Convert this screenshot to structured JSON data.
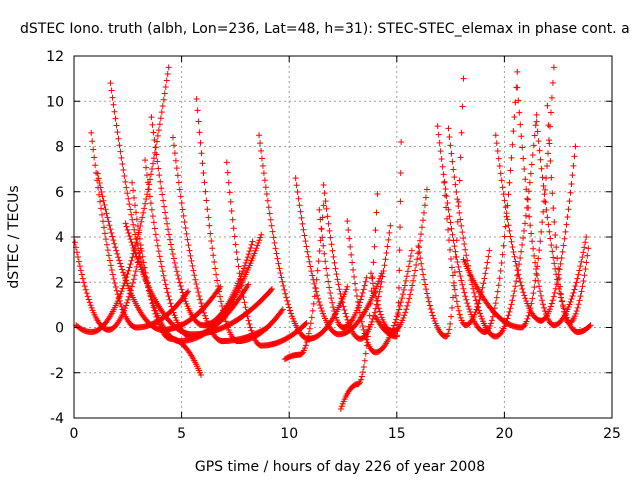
{
  "chart_data": {
    "type": "scatter",
    "title": "dSTEC Iono. truth (albh, Lon=236, Lat=48, h=31): STEC-STEC_elemax in phase cont. a",
    "xlabel": "GPS time / hours of day 226 of year 2008",
    "ylabel": "dSTEC  / TECUs",
    "xlim": [
      0,
      25
    ],
    "ylim": [
      -4,
      12
    ],
    "xticks": [
      0,
      5,
      10,
      15,
      20,
      25
    ],
    "yticks": [
      -4,
      -2,
      0,
      2,
      4,
      6,
      8,
      10,
      12
    ],
    "grid": true,
    "marker": "+",
    "color": "#ff0000",
    "arcs": [
      {
        "left": [
          0.0,
          4.0
        ],
        "min": [
          1.6,
          -0.1
        ],
        "right": [
          3.1,
          3.5
        ]
      },
      {
        "left": [
          0.1,
          0.1
        ],
        "min": [
          0.8,
          -0.2
        ],
        "right": [
          4.4,
          11.5
        ]
      },
      {
        "left": [
          0.8,
          8.6
        ],
        "min": [
          2.9,
          0.0
        ],
        "right": [
          5.3,
          1.6
        ]
      },
      {
        "left": [
          1.1,
          6.8
        ],
        "min": [
          4.1,
          -0.1
        ],
        "right": [
          6.8,
          1.8
        ]
      },
      {
        "left": [
          1.7,
          10.8
        ],
        "min": [
          4.9,
          -0.6
        ],
        "right": [
          8.1,
          1.9
        ]
      },
      {
        "left": [
          2.4,
          4.6
        ],
        "min": [
          5.5,
          -0.3
        ],
        "right": [
          9.2,
          1.7
        ]
      },
      {
        "left": [
          2.7,
          6.4
        ],
        "min": [
          4.5,
          -0.5
        ],
        "right": [
          5.9,
          -2.1
        ]
      },
      {
        "left": [
          3.3,
          7.4
        ],
        "min": [
          5.4,
          -0.4
        ],
        "right": [
          8.7,
          4.1
        ]
      },
      {
        "left": [
          3.6,
          9.3
        ],
        "min": [
          6.0,
          0.1
        ],
        "right": [
          8.3,
          3.8
        ]
      },
      {
        "left": [
          4.6,
          8.4
        ],
        "min": [
          6.9,
          -0.6
        ],
        "right": [
          9.0,
          0.0
        ]
      },
      {
        "left": [
          5.7,
          10.1
        ],
        "min": [
          7.6,
          -0.6
        ],
        "right": [
          9.7,
          0.8
        ]
      },
      {
        "left": [
          7.1,
          7.3
        ],
        "min": [
          8.7,
          -0.8
        ],
        "right": [
          10.8,
          0.2
        ]
      },
      {
        "left": [
          8.6,
          8.5
        ],
        "min": [
          10.9,
          -0.5
        ],
        "right": [
          12.7,
          1.8
        ]
      },
      {
        "left": [
          10.3,
          6.6
        ],
        "min": [
          12.3,
          -0.3
        ],
        "right": [
          14.3,
          2.4
        ]
      },
      {
        "left": [
          9.8,
          -1.4
        ],
        "min": [
          10.5,
          -1.2
        ],
        "right": [
          11.6,
          5.4
        ]
      },
      {
        "left": [
          11.4,
          5.2
        ],
        "min": [
          12.5,
          0.0
        ],
        "right": [
          13.6,
          2.2
        ]
      },
      {
        "left": [
          11.6,
          6.3
        ],
        "min": [
          13.3,
          -0.5
        ],
        "right": [
          14.7,
          4.5
        ]
      },
      {
        "left": [
          12.4,
          -3.6
        ],
        "min": [
          13.2,
          -2.5
        ],
        "right": [
          14.1,
          5.9
        ]
      },
      {
        "left": [
          12.7,
          4.7
        ],
        "min": [
          14.0,
          -1.1
        ],
        "right": [
          15.7,
          3.4
        ]
      },
      {
        "left": [
          14.0,
          0.5
        ],
        "min": [
          15.0,
          -0.4
        ],
        "right": [
          15.2,
          8.2
        ]
      },
      {
        "left": [
          13.8,
          2.4
        ],
        "min": [
          14.8,
          -0.2
        ],
        "right": [
          16.4,
          6.1
        ]
      },
      {
        "left": [
          16.0,
          3.6
        ],
        "min": [
          17.3,
          -0.4
        ],
        "right": [
          18.1,
          11.0
        ]
      },
      {
        "left": [
          17.2,
          6.4
        ],
        "min": [
          18.2,
          0.1
        ],
        "right": [
          19.3,
          3.4
        ]
      },
      {
        "left": [
          16.9,
          8.9
        ],
        "min": [
          19.1,
          -0.2
        ],
        "right": [
          20.6,
          11.3
        ]
      },
      {
        "left": [
          17.4,
          8.8
        ],
        "min": [
          19.6,
          -0.4
        ],
        "right": [
          21.5,
          9.4
        ]
      },
      {
        "left": [
          18.1,
          3.0
        ],
        "min": [
          20.8,
          0.0
        ],
        "right": [
          22.3,
          11.5
        ]
      },
      {
        "left": [
          19.6,
          8.5
        ],
        "min": [
          21.7,
          0.3
        ],
        "right": [
          23.3,
          8.0
        ]
      },
      {
        "left": [
          20.6,
          10.6
        ],
        "min": [
          22.3,
          0.1
        ],
        "right": [
          23.8,
          4.0
        ]
      },
      {
        "left": [
          21.5,
          9.1
        ],
        "min": [
          23.4,
          -0.2
        ],
        "right": [
          24.0,
          0.1
        ]
      },
      {
        "left": [
          22.0,
          9.8
        ],
        "min": [
          23.0,
          0.2
        ],
        "right": [
          23.9,
          3.5
        ]
      }
    ]
  }
}
